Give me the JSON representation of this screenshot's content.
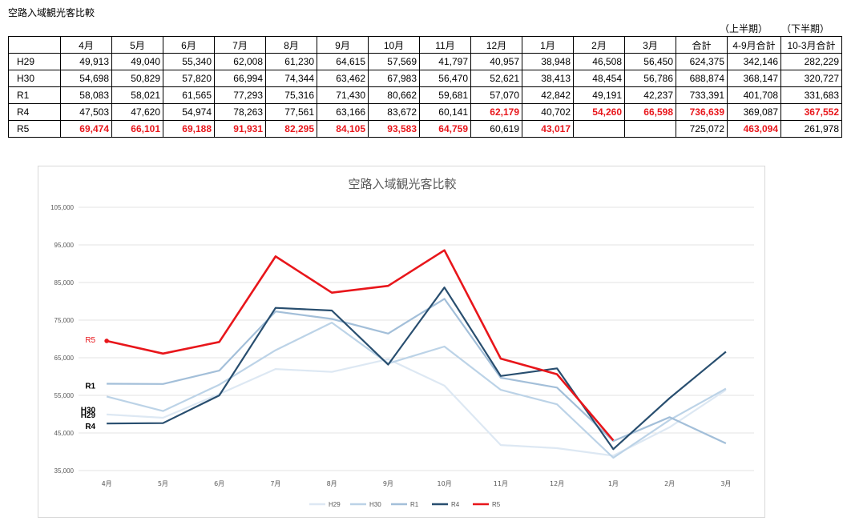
{
  "page_title": "空路入域観光客比較",
  "half_labels": {
    "first": "（上半期）",
    "second": "（下半期）"
  },
  "table": {
    "columns": [
      "",
      "4月",
      "5月",
      "6月",
      "7月",
      "8月",
      "9月",
      "10月",
      "11月",
      "12月",
      "1月",
      "2月",
      "3月",
      "合計",
      "4-9月合計",
      "10-3月合計"
    ],
    "rows": [
      {
        "label": "H29",
        "cells": [
          "49,913",
          "49,040",
          "55,340",
          "62,008",
          "61,230",
          "64,615",
          "57,569",
          "41,797",
          "40,957",
          "38,948",
          "46,508",
          "56,450",
          "624,375",
          "342,146",
          "282,229"
        ],
        "red": []
      },
      {
        "label": "H30",
        "cells": [
          "54,698",
          "50,829",
          "57,820",
          "66,994",
          "74,344",
          "63,462",
          "67,983",
          "56,470",
          "52,621",
          "38,413",
          "48,454",
          "56,786",
          "688,874",
          "368,147",
          "320,727"
        ],
        "red": []
      },
      {
        "label": "R1",
        "cells": [
          "58,083",
          "58,021",
          "61,565",
          "77,293",
          "75,316",
          "71,430",
          "80,662",
          "59,681",
          "57,070",
          "42,842",
          "49,191",
          "42,237",
          "733,391",
          "401,708",
          "331,683"
        ],
        "red": []
      },
      {
        "label": "R4",
        "cells": [
          "47,503",
          "47,620",
          "54,974",
          "78,263",
          "77,561",
          "63,166",
          "83,672",
          "60,141",
          "62,179",
          "40,702",
          "54,260",
          "66,598",
          "736,639",
          "369,087",
          "367,552"
        ],
        "red": [
          8,
          10,
          11,
          12,
          14
        ]
      },
      {
        "label": "R5",
        "cells": [
          "69,474",
          "66,101",
          "69,188",
          "91,931",
          "82,295",
          "84,105",
          "93,583",
          "64,759",
          "60,619",
          "43,017",
          "",
          "",
          "725,072",
          "463,094",
          "261,978"
        ],
        "red": [
          0,
          1,
          2,
          3,
          4,
          5,
          6,
          7,
          9,
          13
        ]
      }
    ]
  },
  "chart_data": {
    "type": "line",
    "title": "空路入域観光客比較",
    "categories": [
      "4月",
      "5月",
      "6月",
      "7月",
      "8月",
      "9月",
      "10月",
      "11月",
      "12月",
      "1月",
      "2月",
      "3月"
    ],
    "y_ticks": [
      "35,000",
      "45,000",
      "55,000",
      "65,000",
      "75,000",
      "85,000",
      "95,000",
      "105,000"
    ],
    "ylim": [
      35000,
      105000
    ],
    "grid": true,
    "legend_position": "bottom",
    "series": [
      {
        "name": "H29",
        "color": "#dde8f3",
        "values": [
          49913,
          49040,
          55340,
          62008,
          61230,
          64615,
          57569,
          41797,
          40957,
          38948,
          46508,
          56450
        ]
      },
      {
        "name": "H30",
        "color": "#bcd3e7",
        "values": [
          54698,
          50829,
          57820,
          66994,
          74344,
          63462,
          67983,
          56470,
          52621,
          38413,
          48454,
          56786
        ]
      },
      {
        "name": "R1",
        "color": "#a3bfd9",
        "values": [
          58083,
          58021,
          61565,
          77293,
          75316,
          71430,
          80662,
          59681,
          57070,
          42842,
          49191,
          42237
        ]
      },
      {
        "name": "R4",
        "color": "#284e6f",
        "values": [
          47503,
          47620,
          54974,
          78263,
          77561,
          63166,
          83672,
          60141,
          62179,
          40702,
          54260,
          66598
        ]
      },
      {
        "name": "R5",
        "color": "#e8161b",
        "values": [
          69474,
          66101,
          69188,
          91931,
          82295,
          84105,
          93583,
          64759,
          60619,
          43017,
          null,
          null
        ]
      }
    ],
    "annotations": [
      {
        "text": "R5",
        "series": "R5",
        "color": "#e8161b"
      },
      {
        "text": "R1",
        "series": "R1",
        "color": "#000000"
      },
      {
        "text": "H30",
        "series": "H30",
        "color": "#000000"
      },
      {
        "text": "H29",
        "series": "H29",
        "color": "#000000"
      },
      {
        "text": "R4",
        "series": "R4",
        "color": "#000000"
      }
    ]
  }
}
